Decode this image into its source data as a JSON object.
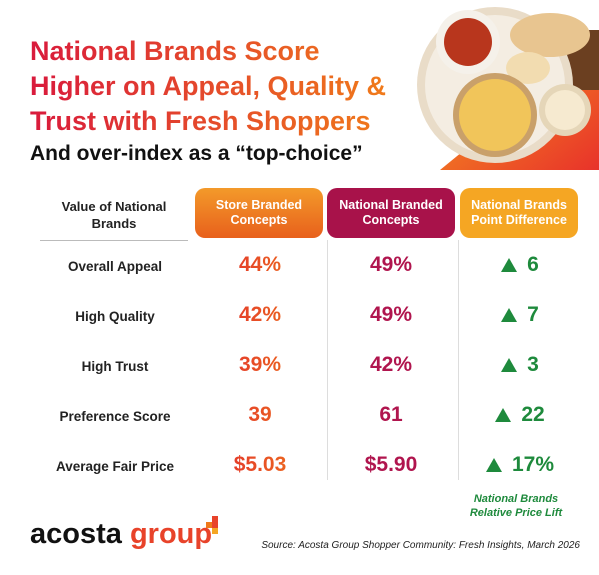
{
  "title_lines": [
    "National Brands Score",
    "Higher on Appeal, Quality &",
    "Trust with Fresh Shoppers"
  ],
  "subtitle": "And over-index as a “top-choice”",
  "table": {
    "header": [
      "Value of National Brands",
      "Store Branded Concepts",
      "National Branded Concepts",
      "National Brands Point Difference"
    ],
    "rows": [
      [
        "Overall Appeal",
        "44%",
        "49%",
        "6"
      ],
      [
        "High Quality",
        "42%",
        "49%",
        "7"
      ],
      [
        "High Trust",
        "39%",
        "42%",
        "3"
      ],
      [
        "Preference Score",
        "39",
        "61",
        "22"
      ],
      [
        "Average Fair Price",
        "$5.03",
        "$5.90",
        "17%"
      ]
    ]
  },
  "point_difference_note": "National Brands Relative Price Lift",
  "logo": {
    "word1": "acosta",
    "word2": "group"
  },
  "source": "Source: Acosta Group Shopper Community: Fresh Insights, March 2026"
}
